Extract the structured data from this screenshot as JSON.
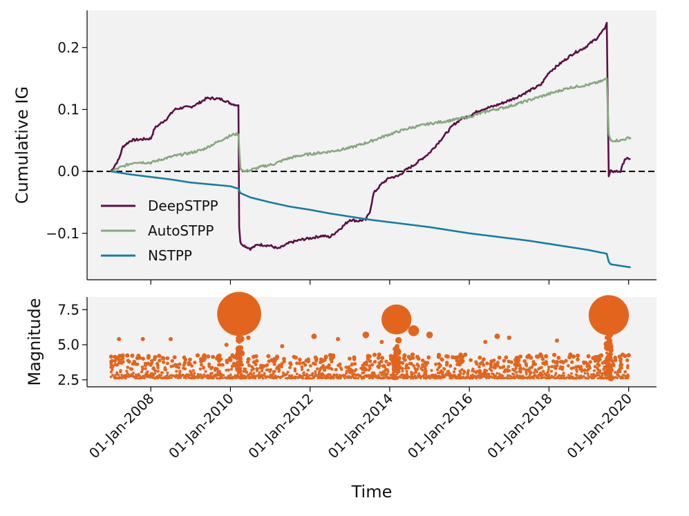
{
  "chart_data": [
    {
      "type": "line",
      "ylabel": "Cumulative IG",
      "ylim": [
        -0.175,
        0.26
      ],
      "yticks": [
        -0.1,
        0.0,
        0.1,
        0.2
      ],
      "ytick_labels": [
        "−0.1",
        "0.0",
        "0.1",
        "0.2"
      ],
      "xlim": [
        2006.4,
        2020.7
      ],
      "background": "#f2f2f2",
      "reference_line": {
        "y": 0.0,
        "style": "dashed",
        "color": "#000000"
      },
      "legend_location": "lower-left",
      "series": [
        {
          "name": "DeepSTPP",
          "color": "#5c0f45",
          "x": [
            2007.0,
            2007.2,
            2007.3,
            2007.5,
            2007.8,
            2008.0,
            2008.1,
            2008.4,
            2008.6,
            2008.8,
            2009.0,
            2009.2,
            2009.4,
            2009.6,
            2009.8,
            2010.0,
            2010.1,
            2010.2,
            2010.22,
            2010.25,
            2010.35,
            2010.5,
            2010.7,
            2011.0,
            2011.2,
            2011.5,
            2011.8,
            2012.0,
            2012.3,
            2012.5,
            2012.8,
            2013.0,
            2013.2,
            2013.4,
            2013.5,
            2013.6,
            2013.8,
            2014.0,
            2014.2,
            2014.4,
            2014.6,
            2014.8,
            2015.0,
            2015.2,
            2015.4,
            2015.6,
            2015.8,
            2016.0,
            2016.3,
            2016.6,
            2016.9,
            2017.2,
            2017.5,
            2017.8,
            2018.0,
            2018.3,
            2018.6,
            2018.9,
            2019.2,
            2019.4,
            2019.45,
            2019.5,
            2019.55,
            2019.6,
            2019.8,
            2019.9,
            2020.0,
            2020.05
          ],
          "values": [
            0.0,
            0.02,
            0.04,
            0.05,
            0.052,
            0.053,
            0.07,
            0.085,
            0.1,
            0.103,
            0.104,
            0.11,
            0.118,
            0.118,
            0.116,
            0.11,
            0.108,
            0.107,
            -0.09,
            -0.115,
            -0.12,
            -0.125,
            -0.118,
            -0.12,
            -0.125,
            -0.115,
            -0.11,
            -0.108,
            -0.104,
            -0.106,
            -0.09,
            -0.078,
            -0.08,
            -0.078,
            -0.065,
            -0.035,
            -0.02,
            -0.01,
            -0.008,
            0.002,
            0.01,
            0.02,
            0.03,
            0.045,
            0.06,
            0.075,
            0.085,
            0.09,
            0.1,
            0.105,
            0.112,
            0.12,
            0.13,
            0.14,
            0.16,
            0.175,
            0.19,
            0.2,
            0.215,
            0.23,
            0.24,
            -0.008,
            0.002,
            0.0,
            0.0,
            0.02,
            0.02,
            0.02
          ]
        },
        {
          "name": "AutoSTPP",
          "color": "#87a87f",
          "x": [
            2007.0,
            2007.3,
            2007.6,
            2008.0,
            2008.3,
            2008.6,
            2009.0,
            2009.3,
            2009.6,
            2009.9,
            2010.1,
            2010.2,
            2010.25,
            2010.35,
            2010.5,
            2010.8,
            2011.1,
            2011.4,
            2011.7,
            2012.0,
            2012.5,
            2013.0,
            2013.5,
            2014.0,
            2014.5,
            2015.0,
            2015.5,
            2016.0,
            2016.5,
            2017.0,
            2017.5,
            2018.0,
            2018.5,
            2019.0,
            2019.3,
            2019.45,
            2019.5,
            2019.55,
            2019.8,
            2020.05
          ],
          "values": [
            0.0,
            0.008,
            0.015,
            0.014,
            0.02,
            0.025,
            0.03,
            0.035,
            0.045,
            0.055,
            0.06,
            0.06,
            0.005,
            0.0,
            0.002,
            0.008,
            0.012,
            0.02,
            0.025,
            0.028,
            0.032,
            0.038,
            0.048,
            0.06,
            0.07,
            0.077,
            0.082,
            0.088,
            0.098,
            0.105,
            0.115,
            0.125,
            0.135,
            0.14,
            0.145,
            0.15,
            0.06,
            0.05,
            0.05,
            0.055
          ]
        },
        {
          "name": "NSTPP",
          "color": "#137ea3",
          "x": [
            2007.0,
            2007.5,
            2008.0,
            2008.5,
            2009.0,
            2009.5,
            2010.0,
            2010.2,
            2010.25,
            2010.5,
            2011.0,
            2011.5,
            2012.0,
            2012.5,
            2013.0,
            2013.5,
            2014.0,
            2014.5,
            2015.0,
            2015.5,
            2016.0,
            2016.5,
            2017.0,
            2017.5,
            2018.0,
            2018.5,
            2019.0,
            2019.45,
            2019.5,
            2019.55,
            2020.05
          ],
          "values": [
            0.0,
            -0.005,
            -0.009,
            -0.013,
            -0.018,
            -0.021,
            -0.024,
            -0.028,
            -0.035,
            -0.042,
            -0.05,
            -0.057,
            -0.062,
            -0.068,
            -0.073,
            -0.078,
            -0.082,
            -0.086,
            -0.09,
            -0.095,
            -0.1,
            -0.104,
            -0.108,
            -0.112,
            -0.117,
            -0.122,
            -0.127,
            -0.133,
            -0.146,
            -0.15,
            -0.155
          ]
        }
      ]
    },
    {
      "type": "scatter",
      "ylabel": "Magnitude",
      "xlabel": "Time",
      "ylim": [
        2.0,
        8.4
      ],
      "yticks": [
        2.5,
        5.0,
        7.5
      ],
      "ytick_labels": [
        "2.5",
        "5.0",
        "7.5"
      ],
      "xlim": [
        2006.4,
        2020.7
      ],
      "xticks": [
        2008,
        2010,
        2012,
        2014,
        2016,
        2018,
        2020
      ],
      "xtick_labels": [
        "01-Jan-2008",
        "01-Jan-2010",
        "01-Jan-2012",
        "01-Jan-2014",
        "01-Jan-2016",
        "01-Jan-2018",
        "01-Jan-2020"
      ],
      "background": "#f2f2f2",
      "color": "#e3651d",
      "large_events": [
        {
          "t": 2010.22,
          "m": 7.2
        },
        {
          "t": 2014.17,
          "m": 6.8
        },
        {
          "t": 2014.6,
          "m": 6.0
        },
        {
          "t": 2019.5,
          "m": 7.1
        },
        {
          "t": 2013.4,
          "m": 5.7
        },
        {
          "t": 2015.0,
          "m": 5.7
        },
        {
          "t": 2016.7,
          "m": 5.6
        },
        {
          "t": 2012.1,
          "m": 5.6
        },
        {
          "t": 2017.0,
          "m": 5.5
        },
        {
          "t": 2007.2,
          "m": 5.4
        },
        {
          "t": 2007.8,
          "m": 5.4
        },
        {
          "t": 2008.5,
          "m": 5.4
        },
        {
          "t": 2010.45,
          "m": 5.5
        },
        {
          "t": 2012.7,
          "m": 5.4
        },
        {
          "t": 2018.2,
          "m": 5.3
        },
        {
          "t": 2019.45,
          "m": 5.5
        },
        {
          "t": 2009.9,
          "m": 5.0
        },
        {
          "t": 2013.8,
          "m": 5.2
        },
        {
          "t": 2016.4,
          "m": 5.2
        },
        {
          "t": 2011.3,
          "m": 4.9
        }
      ],
      "background_events": {
        "count": 1400,
        "t_range": [
          2007.0,
          2020.0
        ],
        "m_min": 2.6,
        "m_typical_max": 4.3
      }
    }
  ]
}
